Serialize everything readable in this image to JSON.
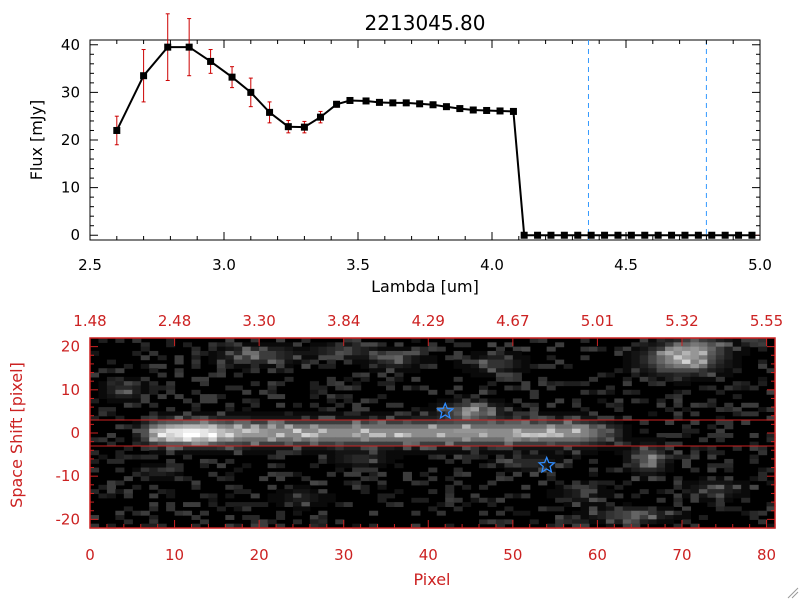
{
  "chart_data": [
    {
      "type": "line",
      "title": "2213045.80",
      "xlabel": "Lambda [um]",
      "ylabel": "Flux [mJy]",
      "xlim": [
        2.5,
        5.0
      ],
      "ylim": [
        -1,
        41
      ],
      "xticks": [
        "2.5",
        "3.0",
        "3.5",
        "4.0",
        "4.5",
        "5.0"
      ],
      "xtick_values": [
        2.5,
        3.0,
        3.5,
        4.0,
        4.5,
        5.0
      ],
      "yticks": [
        "0",
        "10",
        "20",
        "30",
        "40"
      ],
      "ytick_values": [
        0,
        10,
        20,
        30,
        40
      ],
      "series": [
        {
          "name": "flux",
          "x": [
            2.6,
            2.7,
            2.79,
            2.87,
            2.95,
            3.03,
            3.1,
            3.17,
            3.24,
            3.3,
            3.36,
            3.42,
            3.47,
            3.53,
            3.58,
            3.63,
            3.68,
            3.73,
            3.78,
            3.83,
            3.88,
            3.93,
            3.98,
            4.03,
            4.08,
            4.12,
            4.17,
            4.22,
            4.27,
            4.32,
            4.37,
            4.42,
            4.47,
            4.52,
            4.57,
            4.62,
            4.67,
            4.72,
            4.77,
            4.82,
            4.87,
            4.92,
            4.97
          ],
          "y": [
            22.0,
            33.5,
            39.5,
            39.5,
            36.5,
            33.2,
            30.0,
            25.8,
            22.8,
            22.7,
            24.8,
            27.5,
            28.3,
            28.2,
            27.9,
            27.8,
            27.8,
            27.6,
            27.4,
            27.0,
            26.6,
            26.3,
            26.2,
            26.1,
            26.0,
            0.0,
            0.0,
            0.0,
            0.0,
            0.0,
            0.0,
            0.0,
            0.0,
            0.0,
            0.0,
            0.0,
            0.0,
            0.0,
            0.0,
            0.0,
            0.0,
            0.0,
            0.0
          ],
          "yerr": [
            3.0,
            5.5,
            7.0,
            6.0,
            2.5,
            2.2,
            3.0,
            2.2,
            1.3,
            1.2,
            1.2,
            0.6,
            0.5,
            0.4,
            0.4,
            0.3,
            0.3,
            0.3,
            0.3,
            0.3,
            0.3,
            0.3,
            0.3,
            0.3,
            0.3,
            0.2,
            0.2,
            0.2,
            0.2,
            0.2,
            0.2,
            0.2,
            0.2,
            0.2,
            0.2,
            0.2,
            0.2,
            0.2,
            0.2,
            0.2,
            0.2,
            0.2,
            0.2
          ]
        }
      ],
      "vlines": [
        4.36,
        4.8
      ],
      "hline": 0
    },
    {
      "type": "heatmap",
      "xlabel": "Pixel",
      "ylabel": "Space Shift [pixel]",
      "xlim": [
        0,
        81
      ],
      "ylim": [
        -22,
        22
      ],
      "xticks": [
        "0",
        "10",
        "20",
        "30",
        "40",
        "50",
        "60",
        "70",
        "80"
      ],
      "xtick_values": [
        0,
        10,
        20,
        30,
        40,
        50,
        60,
        70,
        80
      ],
      "yticks": [
        "20",
        "10",
        "0",
        "-10",
        "-20"
      ],
      "ytick_values": [
        20,
        10,
        0,
        -10,
        -20
      ],
      "top_axis_labels": [
        "1.48",
        "2.48",
        "3.30",
        "3.84",
        "4.29",
        "4.67",
        "5.01",
        "5.32",
        "5.55"
      ],
      "hlines": [
        3,
        -3
      ],
      "star_markers": [
        {
          "x": 42,
          "y": 5
        },
        {
          "x": 54,
          "y": -7.5
        }
      ],
      "trace": {
        "x_start": 5,
        "x_end": 64,
        "peak_pixel": 12,
        "center_shift": 0
      }
    }
  ],
  "colors": {
    "axis_red": "#cc2222",
    "data_black": "#000000",
    "error_red": "#cc0000",
    "dashed_blue": "#3399ff",
    "star_blue": "#2f8cff",
    "background": "#ffffff"
  }
}
